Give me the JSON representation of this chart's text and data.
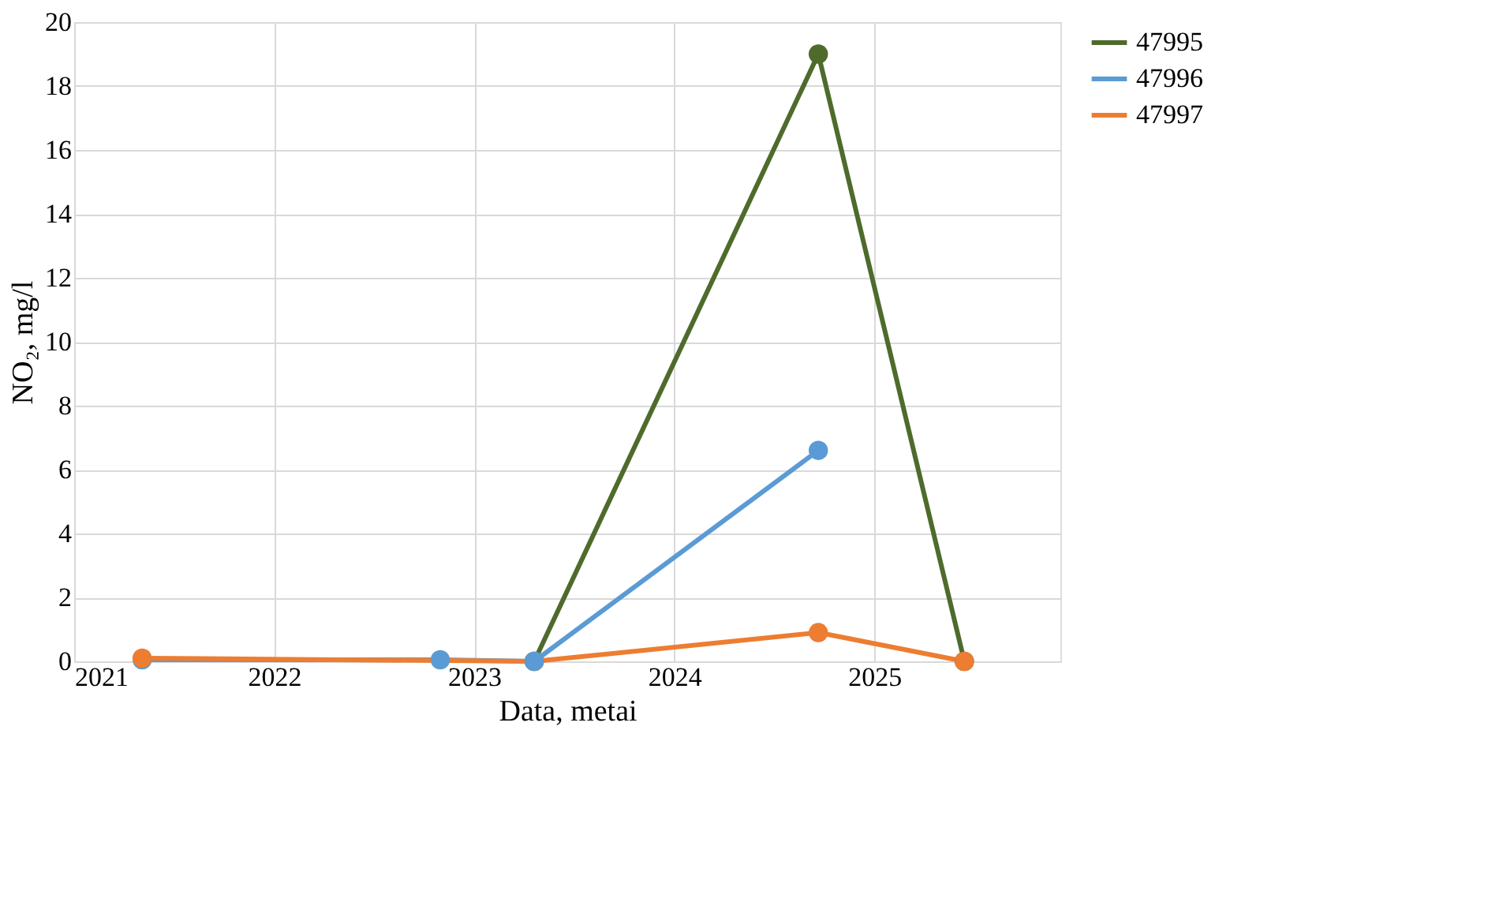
{
  "chart_data": {
    "type": "line",
    "xlabel": "Data, metai",
    "ylabel": "NO₂, mg/l",
    "xlim": [
      2021,
      2025.93
    ],
    "xticks": [
      2021,
      2022,
      2023,
      2024,
      2025
    ],
    "ylim": [
      0,
      20
    ],
    "yticks": [
      0,
      2,
      4,
      6,
      8,
      10,
      12,
      14,
      16,
      18,
      20
    ],
    "grid": true,
    "legend": "right",
    "marker": "circle",
    "line_style": "solid",
    "series": [
      {
        "name": "47995",
        "color": "#4e6b2c",
        "x": [
          2023.3,
          2024.72,
          2025.45
        ],
        "values": [
          0,
          19,
          0
        ]
      },
      {
        "name": "47996",
        "color": "#5b9bd5",
        "x": [
          2021.34,
          2022.83,
          2023.3,
          2024.72
        ],
        "values": [
          0.05,
          0.05,
          0,
          6.6
        ]
      },
      {
        "name": "47997",
        "color": "#ed7d31",
        "x": [
          2021.34,
          2023.3,
          2024.72,
          2025.45
        ],
        "values": [
          0.1,
          0,
          0.9,
          0
        ]
      }
    ]
  }
}
